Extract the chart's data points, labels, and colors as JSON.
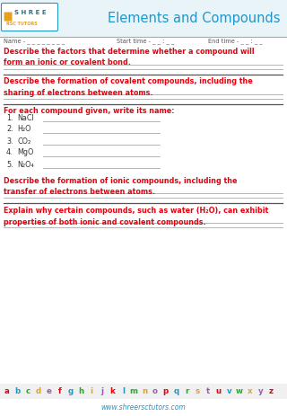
{
  "title": "Elements and Compounds",
  "logo_text_shree": "SHREE",
  "logo_text_rsc": "RSC TUTORS",
  "name_label": "Name - _ _ _ _ _ _ _ _",
  "start_time_label": "Start time - _ _ : _ _",
  "end_time_label": "End time - _ _ : _ _",
  "q1_text": "Describe the factors that determine whether a compound will\nform an ionic or covalent bond.",
  "q2_text": "Describe the formation of covalent compounds, including the\nsharing of electrons between atoms.",
  "q3_text": "For each compound given, write its name:",
  "compounds": [
    {
      "num": "1.",
      "formula": "NaCl"
    },
    {
      "num": "2.",
      "formula": "H₂O"
    },
    {
      "num": "3.",
      "formula": "CO₂"
    },
    {
      "num": "4.",
      "formula": "MgO"
    },
    {
      "num": "5.",
      "formula": "N₂O₄"
    }
  ],
  "q4_text": "Describe the formation of ionic compounds, including the\ntransfer of electrons between atoms.",
  "q5_text": "Explain why certain compounds, such as water (H₂O), can exhibit\nproperties of both ionic and covalent compounds.",
  "website": "www.shreersctutors.com",
  "red_color": "#e8000d",
  "blue_title_color": "#2196c8",
  "teal_color": "#1a7a8a",
  "orange_color": "#e8a020",
  "line_color": "#aaaaaa",
  "dark_line_color": "#555555",
  "logo_border_color": "#2196c8",
  "bg_color": "#ffffff",
  "header_bg": "#e8f4f8",
  "alph_bg": "#f0f0f0",
  "letters": [
    "a",
    "b",
    "c",
    "d",
    "e",
    "f",
    "g",
    "h",
    "i",
    "j",
    "k",
    "l",
    "m",
    "n",
    "o",
    "p",
    "q",
    "r",
    "s",
    "t",
    "u",
    "v",
    "w",
    "x",
    "y",
    "z"
  ],
  "letter_colors": [
    "#e8000d",
    "#2196c8",
    "#28a828",
    "#e8a020",
    "#9b59b6",
    "#e8000d",
    "#2196c8",
    "#28a828",
    "#e8a020",
    "#9b59b6",
    "#e8000d",
    "#2196c8",
    "#28a828",
    "#e8a020",
    "#9b59b6",
    "#e8000d",
    "#2196c8",
    "#28a828",
    "#e8a020",
    "#9b59b6",
    "#e8000d",
    "#2196c8",
    "#28a828",
    "#e8a020",
    "#9b59b6",
    "#e8000d"
  ]
}
